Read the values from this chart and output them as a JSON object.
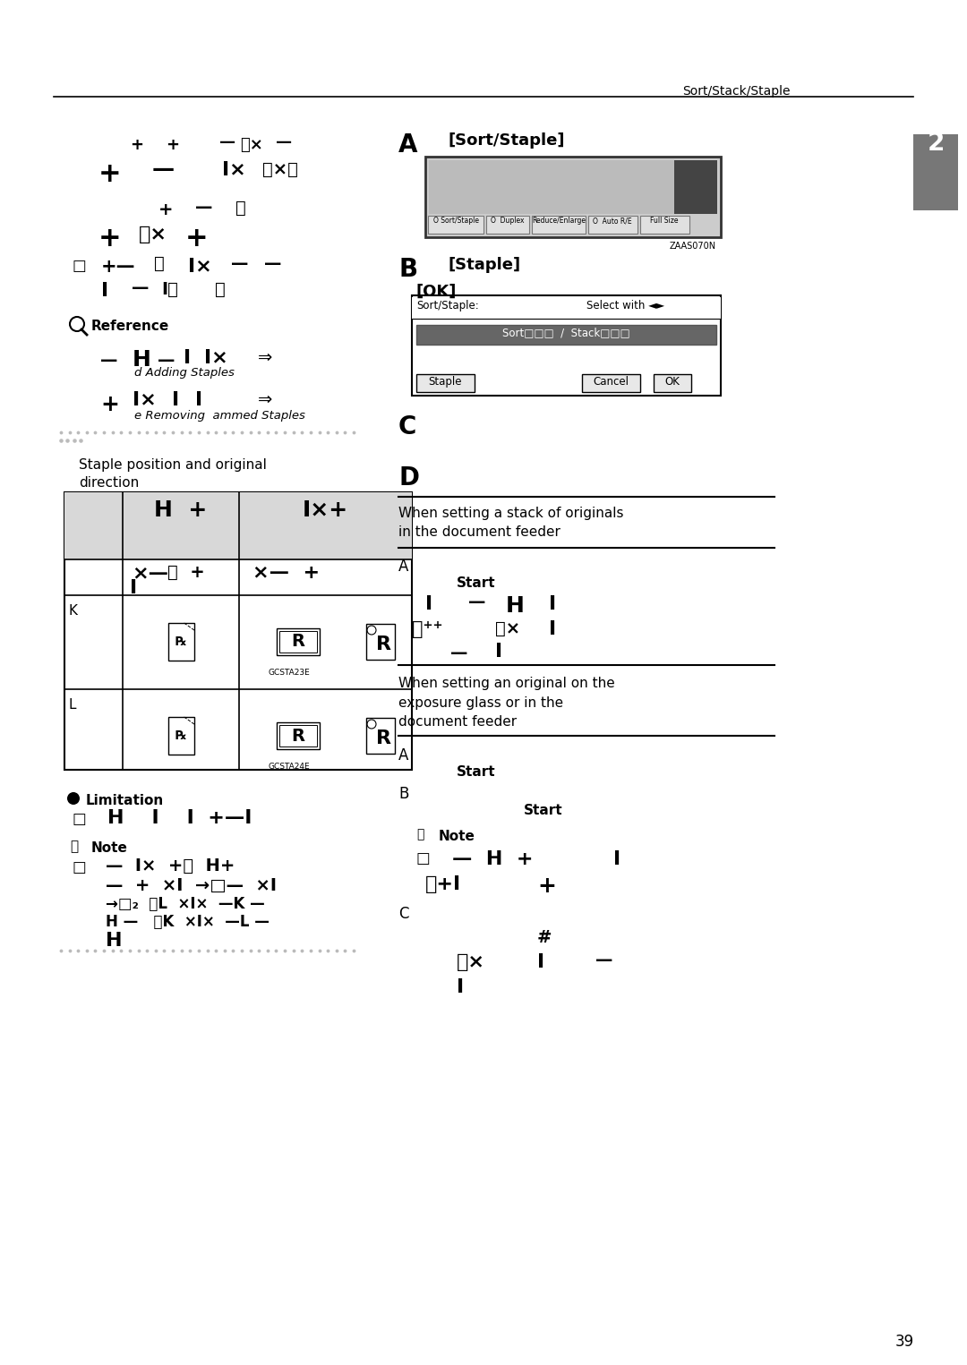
{
  "background": "#ffffff",
  "header_text": "Sort/Stack/Staple",
  "page_number": "39",
  "tab_label": "2"
}
